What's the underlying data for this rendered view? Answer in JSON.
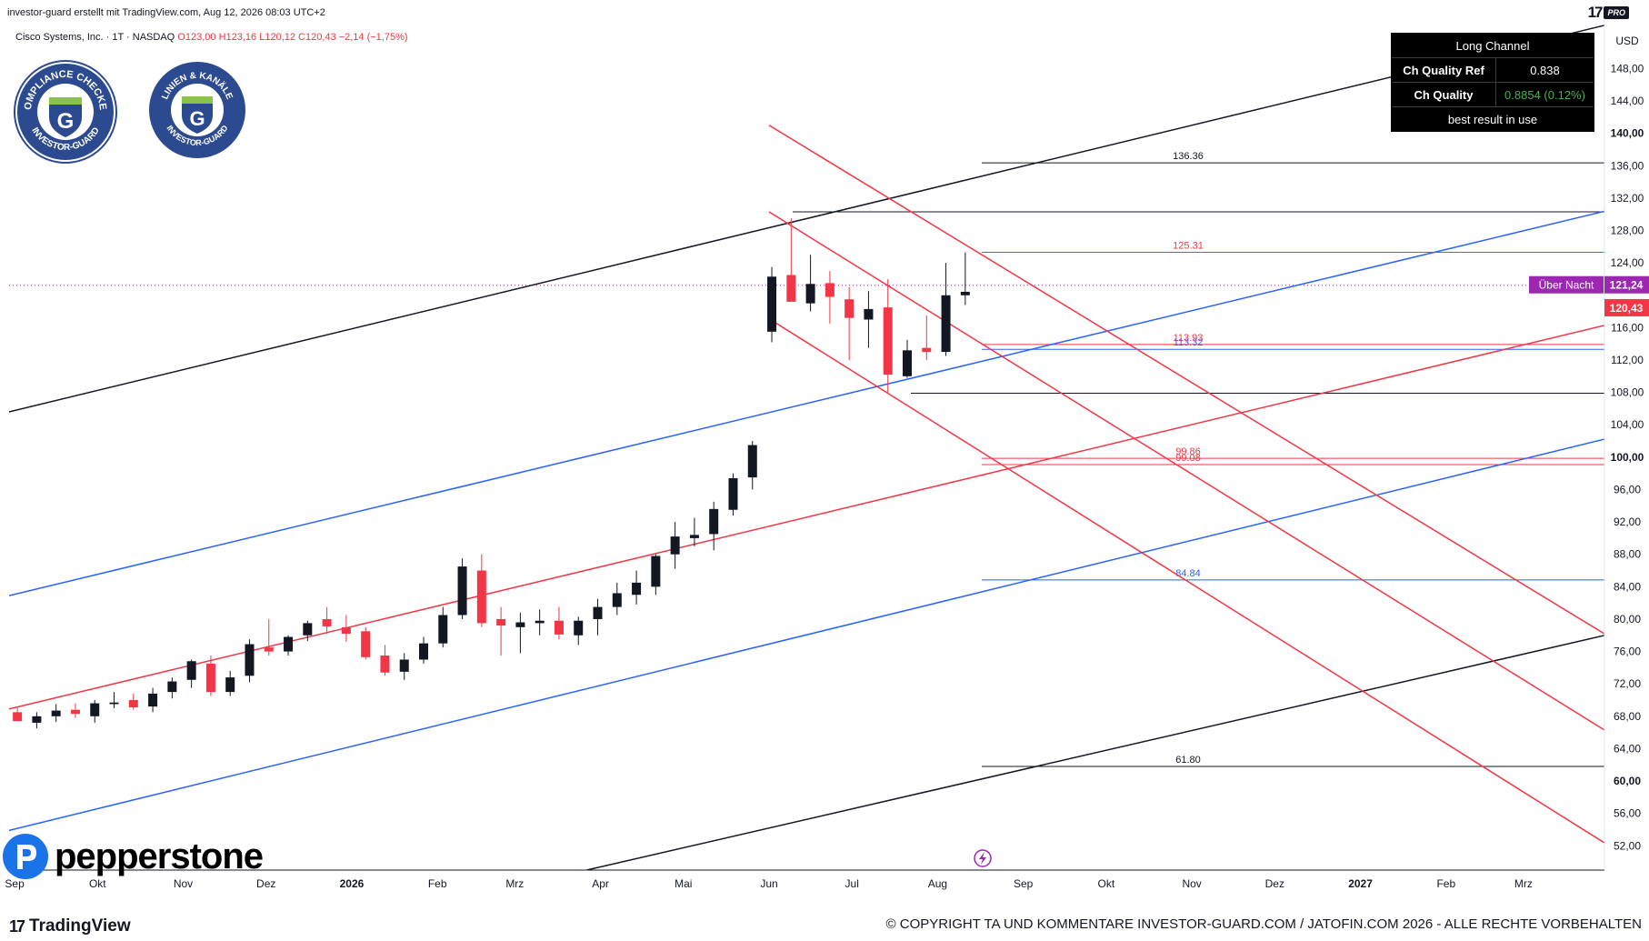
{
  "header": {
    "caption": "investor-guard erstellt mit TradingView.com, Aug 12, 2026 08:03 UTC+2",
    "symbol": "Cisco Systems, Inc. · 1T · NASDAQ",
    "open": "O123,00",
    "high": "H123,16",
    "low": "L120,12",
    "close": "C120,43",
    "change": "−2,14 (−1,75%)",
    "logo_pro": "PRO"
  },
  "badges": [
    {
      "text_top": "COMPLIANCE CHECKED",
      "text_bottom": "INVESTOR-GUARD",
      "letter": "G"
    },
    {
      "text_top": "LINIEN & KANÄLE",
      "text_bottom": "INVESTOR-GUARD",
      "letter": "G"
    }
  ],
  "channel_table": {
    "title": "Long Channel",
    "row1_label": "Ch Quality Ref",
    "row1_value": "0.838",
    "row2_label": "Ch Quality",
    "row2_value": "0.8854 (0.12%)",
    "footer": "best result in use"
  },
  "price_labels": {
    "overnight_label": "Über Nacht",
    "overnight_value": "121,24",
    "last_value": "120,43",
    "currency": "USD"
  },
  "colors": {
    "up": "#131722",
    "down": "#f23645",
    "channel_black": "#000000",
    "channel_blue": "#2962ff",
    "channel_red": "#f23645",
    "overnight": "#9c27b0",
    "level_green": "#089981",
    "table_bg": "#000000"
  },
  "footer": {
    "brand": "pepperstone",
    "tradingview": "TradingView",
    "copyright": "© COPYRIGHT TA UND KOMMENTARE INVESTOR-GUARD.COM / JATOFIN.COM 2026 - ALLE RECHTE VORBEHALTEN"
  },
  "chart_data": {
    "type": "candlestick",
    "title": "Cisco Systems, Inc. · 1T · NASDAQ",
    "ylabel": "USD",
    "ylim": [
      49,
      154
    ],
    "y_ticks": [
      "148,00",
      "144,00",
      "140,00",
      "136,00",
      "132,00",
      "128,00",
      "124,00",
      "116,00",
      "112,00",
      "108,00",
      "104,00",
      "100,00",
      "96,00",
      "92,00",
      "88,00",
      "84,00",
      "80,00",
      "76,00",
      "72,00",
      "68,00",
      "64,00",
      "60,00",
      "56,00",
      "52,00"
    ],
    "y_tick_values": [
      148,
      144,
      140,
      136,
      132,
      128,
      124,
      116,
      112,
      108,
      104,
      100,
      96,
      92,
      88,
      84,
      80,
      76,
      72,
      68,
      64,
      60,
      56,
      52
    ],
    "x_ticks": [
      "Sep",
      "Okt",
      "Nov",
      "Dez",
      "2026",
      "Feb",
      "Mrz",
      "Apr",
      "Mai",
      "Jun",
      "Jul",
      "Aug",
      "Sep",
      "Okt",
      "Nov",
      "Dez",
      "2027",
      "Feb",
      "Mrz"
    ],
    "x_tick_dates": [
      "2025-09-01",
      "2025-10-01",
      "2025-11-01",
      "2025-12-01",
      "2026-01-01",
      "2026-02-01",
      "2026-03-01",
      "2026-04-01",
      "2026-05-01",
      "2026-06-01",
      "2026-07-01",
      "2026-08-01",
      "2026-09-01",
      "2026-10-01",
      "2026-11-01",
      "2026-12-01",
      "2027-01-01",
      "2027-02-01",
      "2027-03-01"
    ],
    "levels": [
      {
        "label": "136.36",
        "value": 136.36,
        "color": "#131722"
      },
      {
        "label": "125.31",
        "value": 125.31,
        "color": "#f23645"
      },
      {
        "label": "113.93",
        "value": 113.93,
        "color": "#f23645"
      },
      {
        "label": "113.32",
        "value": 113.32,
        "color": "#2962ff"
      },
      {
        "label": "99.86",
        "value": 99.86,
        "color": "#f23645"
      },
      {
        "label": "99.08",
        "value": 99.08,
        "color": "#f23645"
      },
      {
        "label": "84.84",
        "value": 84.84,
        "color": "#2962ff"
      },
      {
        "label": "61.80",
        "value": 61.8,
        "color": "#131722"
      }
    ],
    "extra_levels": [
      {
        "value": 130.3,
        "color": "#131722"
      },
      {
        "value": 107.9,
        "color": "#131722"
      }
    ],
    "overnight_price": 121.24,
    "last_price": 120.43,
    "lines": [
      {
        "name": "long-channel-top",
        "color": "#131722",
        "p1": [
          "2025-08-30",
          105.6
        ],
        "p2": [
          "2027-03-31",
          153.4
        ]
      },
      {
        "name": "long-channel-bottom",
        "color": "#131722",
        "p1": [
          "2026-03-27",
          49.0
        ],
        "p2": [
          "2027-04-30",
          80.4
        ]
      },
      {
        "name": "blue-channel-top",
        "color": "#2962ff",
        "p1": [
          "2025-08-30",
          82.9
        ],
        "p2": [
          "2027-04-30",
          132.9
        ]
      },
      {
        "name": "blue-channel-bottom",
        "color": "#2962ff",
        "p1": [
          "2025-08-30",
          53.9
        ],
        "p2": [
          "2027-04-30",
          104.8
        ]
      },
      {
        "name": "red-channel-mid",
        "color": "#f23645",
        "p1": [
          "2025-08-30",
          68.9
        ],
        "p2": [
          "2027-04-30",
          118.8
        ]
      },
      {
        "name": "down-channel-top",
        "color": "#f23645",
        "p1": [
          "2026-06-01",
          141.0
        ],
        "p2": [
          "2027-04-30",
          71.8
        ]
      },
      {
        "name": "down-channel-mid",
        "color": "#f23645",
        "p1": [
          "2026-06-01",
          130.3
        ],
        "p2": [
          "2027-04-30",
          59.8
        ]
      },
      {
        "name": "down-channel-bottom",
        "color": "#f23645",
        "p1": [
          "2026-06-01",
          117.1
        ],
        "p2": [
          "2027-04-15",
          49.0
        ]
      }
    ],
    "series": [
      {
        "name": "CSCO",
        "dates": [
          "2025-09-02",
          "2025-09-09",
          "2025-09-16",
          "2025-09-23",
          "2025-09-30",
          "2025-10-07",
          "2025-10-14",
          "2025-10-21",
          "2025-10-28",
          "2025-11-04",
          "2025-11-11",
          "2025-11-18",
          "2025-11-25",
          "2025-12-02",
          "2025-12-09",
          "2025-12-16",
          "2025-12-23",
          "2025-12-30",
          "2026-01-06",
          "2026-01-13",
          "2026-01-20",
          "2026-01-27",
          "2026-02-03",
          "2026-02-10",
          "2026-02-17",
          "2026-02-24",
          "2026-03-03",
          "2026-03-10",
          "2026-03-17",
          "2026-03-24",
          "2026-03-31",
          "2026-04-07",
          "2026-04-14",
          "2026-04-21",
          "2026-04-28",
          "2026-05-05",
          "2026-05-12",
          "2026-05-19",
          "2026-05-26",
          "2026-06-02",
          "2026-06-09",
          "2026-06-16",
          "2026-06-23",
          "2026-06-30",
          "2026-07-07",
          "2026-07-14",
          "2026-07-21",
          "2026-07-28",
          "2026-08-04",
          "2026-08-11"
        ],
        "open": [
          68.5,
          67.2,
          68.0,
          68.8,
          68.0,
          69.5,
          70.0,
          69.2,
          71.0,
          72.5,
          74.5,
          71.0,
          73.0,
          76.5,
          76.0,
          78.0,
          80.0,
          79.0,
          78.5,
          75.5,
          73.5,
          75.0,
          77.0,
          80.5,
          86.0,
          80.0,
          79.0,
          79.5,
          79.8,
          78.0,
          80.0,
          81.5,
          83.0,
          84.0,
          88.0,
          90.0,
          90.5,
          93.5,
          97.5,
          115.5,
          122.5,
          119.0,
          121.5,
          119.5,
          117.0,
          118.5,
          110.0,
          113.5,
          113.0,
          120.0
        ],
        "high": [
          69.2,
          68.5,
          69.5,
          69.6,
          70.0,
          71.0,
          70.8,
          71.5,
          72.8,
          75.0,
          75.5,
          73.6,
          77.5,
          80.0,
          78.0,
          79.8,
          81.5,
          80.5,
          79.0,
          76.8,
          75.8,
          77.8,
          81.5,
          87.5,
          88.0,
          81.5,
          80.8,
          81.2,
          81.5,
          80.3,
          82.5,
          84.5,
          86.0,
          88.0,
          92.0,
          92.5,
          94.5,
          98.0,
          102.0,
          123.5,
          129.5,
          125.0,
          123.0,
          121.0,
          120.5,
          122.0,
          114.5,
          117.5,
          124.0,
          125.3
        ],
        "low": [
          67.4,
          66.5,
          67.3,
          67.8,
          67.2,
          69.0,
          68.8,
          68.5,
          70.2,
          71.5,
          70.5,
          70.5,
          72.2,
          75.5,
          75.5,
          77.3,
          78.2,
          77.2,
          75.0,
          73.0,
          72.5,
          74.5,
          76.5,
          80.0,
          79.0,
          75.5,
          75.8,
          78.0,
          77.5,
          76.8,
          78.0,
          80.5,
          81.8,
          83.0,
          86.2,
          89.0,
          88.5,
          92.8,
          96.0,
          114.2,
          120.0,
          118.0,
          116.5,
          112.0,
          113.5,
          108.0,
          109.8,
          112.0,
          112.5,
          118.8
        ],
        "close": [
          67.4,
          68.0,
          68.7,
          68.3,
          69.6,
          69.7,
          69.1,
          70.8,
          72.3,
          74.8,
          71.0,
          72.8,
          76.9,
          76.0,
          77.8,
          79.5,
          79.1,
          78.2,
          75.3,
          73.4,
          75.0,
          77.0,
          80.5,
          86.5,
          79.5,
          79.2,
          79.6,
          79.8,
          78.1,
          79.8,
          81.5,
          83.2,
          84.5,
          87.8,
          90.2,
          90.4,
          93.6,
          97.4,
          101.5,
          122.3,
          119.2,
          121.4,
          119.8,
          117.2,
          118.3,
          110.2,
          113.2,
          113.0,
          120.0,
          120.43
        ]
      }
    ]
  }
}
